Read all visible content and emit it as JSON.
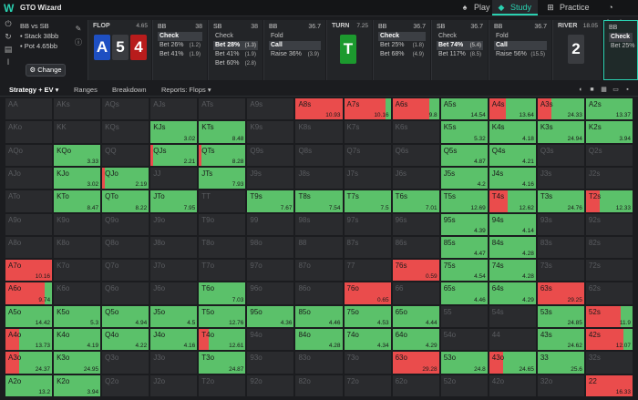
{
  "app": {
    "title": "GTO Wizard"
  },
  "nav": [
    {
      "label": "Play",
      "icon": "spade-icon",
      "glyph": "♠",
      "active": false
    },
    {
      "label": "Study",
      "icon": "study-cap-icon",
      "glyph": "◆",
      "active": true
    },
    {
      "label": "Practice",
      "icon": "gamepad-icon",
      "glyph": "⊞",
      "active": false
    },
    {
      "label": "Analyze",
      "icon": "analyze-icon",
      "glyph": "◔",
      "active": false
    }
  ],
  "spot": {
    "matchup": "BB vs SB",
    "stack": "• Stack 38bb",
    "pot": "• Pot 4.65bb",
    "change_label": "Change"
  },
  "flop": {
    "title": "FLOP",
    "pot": "4.65",
    "cards": [
      {
        "rank": "A",
        "color": "#1e4fc2"
      },
      {
        "rank": "5",
        "color": "#3a3c40"
      },
      {
        "rank": "4",
        "color": "#b81c1c"
      }
    ]
  },
  "turn": {
    "title": "TURN",
    "pot": "7.25",
    "card": {
      "rank": "T",
      "color": "#1c9a2e"
    }
  },
  "river": {
    "title": "RIVER",
    "pot": "18.05",
    "card": {
      "rank": "2",
      "color": "#3a3c40"
    }
  },
  "panels": [
    {
      "player": "BB",
      "stack": "38",
      "actions": [
        {
          "label": "Check",
          "n": "",
          "sel": true
        },
        {
          "label": "Bet 26%",
          "n": "(1.2)",
          "sel": false
        },
        {
          "label": "Bet 41%",
          "n": "(1.9)",
          "sel": false
        }
      ]
    },
    {
      "player": "SB",
      "stack": "38",
      "actions": [
        {
          "label": "Check",
          "n": "",
          "sel": false
        },
        {
          "label": "Bet 28%",
          "n": "(1.3)",
          "sel": true
        },
        {
          "label": "Bet 41%",
          "n": "(1.9)",
          "sel": false
        },
        {
          "label": "Bet 60%",
          "n": "(2.8)",
          "sel": false
        }
      ]
    },
    {
      "player": "BB",
      "stack": "36.7",
      "actions": [
        {
          "label": "Fold",
          "n": "",
          "sel": false
        },
        {
          "label": "Call",
          "n": "",
          "sel": true
        },
        {
          "label": "Raise 36%",
          "n": "(3.9)",
          "sel": false
        }
      ]
    },
    {
      "player": "BB",
      "stack": "36.7",
      "actions": [
        {
          "label": "Check",
          "n": "",
          "sel": true
        },
        {
          "label": "Bet 25%",
          "n": "(1.8)",
          "sel": false
        },
        {
          "label": "Bet 68%",
          "n": "(4.9)",
          "sel": false
        }
      ]
    },
    {
      "player": "SB",
      "stack": "36.7",
      "actions": [
        {
          "label": "Check",
          "n": "",
          "sel": false
        },
        {
          "label": "Bet 74%",
          "n": "(5.4)",
          "sel": true
        },
        {
          "label": "Bet 117%",
          "n": "(8.5)",
          "sel": false
        }
      ]
    },
    {
      "player": "BB",
      "stack": "36.7",
      "actions": [
        {
          "label": "Fold",
          "n": "",
          "sel": false
        },
        {
          "label": "Call",
          "n": "",
          "sel": true
        },
        {
          "label": "Raise 56%",
          "n": "(15.5)",
          "sel": false
        }
      ]
    },
    {
      "player": "BB",
      "stack": "",
      "actions": [
        {
          "label": "Check",
          "n": "",
          "sel": true
        },
        {
          "label": "Bet 25%",
          "n": "",
          "sel": false
        }
      ]
    }
  ],
  "tabs": {
    "strategy": "Strategy + EV",
    "ranges": "Ranges",
    "breakdown": "Breakdown",
    "reports": "Reports: Flops"
  },
  "colors": {
    "green": "#5bc16a",
    "red": "#ea4c4c",
    "empty": "#2a2b2e",
    "accent": "#2ad0b0"
  },
  "matrix": [
    [
      [
        "AA",
        0,
        0,
        ""
      ],
      [
        "AKs",
        0,
        0,
        ""
      ],
      [
        "AQs",
        0,
        0,
        ""
      ],
      [
        "AJs",
        0,
        0,
        ""
      ],
      [
        "ATs",
        0,
        0,
        ""
      ],
      [
        "A9s",
        0,
        0,
        ""
      ],
      [
        "A8s",
        1,
        1,
        "10.93"
      ],
      [
        "A7s",
        1,
        0.9,
        "10.16"
      ],
      [
        "A6s",
        1,
        0.8,
        "9.8"
      ],
      [
        "A5s",
        1,
        0,
        "14.54"
      ],
      [
        "A4s",
        1,
        0.35,
        "13.64"
      ],
      [
        "A3s",
        1,
        0.3,
        "24.33"
      ],
      [
        "A2s",
        1,
        0,
        "13.37"
      ]
    ],
    [
      [
        "AKo",
        0,
        0,
        ""
      ],
      [
        "KK",
        0,
        0,
        ""
      ],
      [
        "KQs",
        0,
        0,
        ""
      ],
      [
        "KJs",
        1,
        0,
        "3.02"
      ],
      [
        "KTs",
        1,
        0,
        "8.48"
      ],
      [
        "K9s",
        0,
        0,
        ""
      ],
      [
        "K8s",
        0,
        0,
        ""
      ],
      [
        "K7s",
        0,
        0,
        ""
      ],
      [
        "K6s",
        0,
        0,
        ""
      ],
      [
        "K5s",
        1,
        0,
        "5.32"
      ],
      [
        "K4s",
        1,
        0,
        "4.18"
      ],
      [
        "K3s",
        1,
        0,
        "24.94"
      ],
      [
        "K2s",
        1,
        0,
        "3.94"
      ]
    ],
    [
      [
        "AQo",
        0,
        0,
        ""
      ],
      [
        "KQo",
        1,
        0,
        "3.33"
      ],
      [
        "QQ",
        0,
        0,
        ""
      ],
      [
        "QJs",
        1,
        0.05,
        "2.21"
      ],
      [
        "QTs",
        1,
        0.05,
        "8.28"
      ],
      [
        "Q9s",
        0,
        0,
        ""
      ],
      [
        "Q8s",
        0,
        0,
        ""
      ],
      [
        "Q7s",
        0,
        0,
        ""
      ],
      [
        "Q6s",
        0,
        0,
        ""
      ],
      [
        "Q5s",
        1,
        0,
        "4.87"
      ],
      [
        "Q4s",
        1,
        0,
        "4.21"
      ],
      [
        "Q3s",
        0,
        0,
        ""
      ],
      [
        "Q2s",
        0,
        0,
        ""
      ]
    ],
    [
      [
        "AJo",
        0,
        0,
        ""
      ],
      [
        "KJo",
        1,
        0,
        "3.02"
      ],
      [
        "QJo",
        1,
        0.05,
        "2.19"
      ],
      [
        "JJ",
        0,
        0,
        ""
      ],
      [
        "JTs",
        1,
        0,
        "7.93"
      ],
      [
        "J9s",
        0,
        0,
        ""
      ],
      [
        "J8s",
        0,
        0,
        ""
      ],
      [
        "J7s",
        0,
        0,
        ""
      ],
      [
        "J6s",
        0,
        0,
        ""
      ],
      [
        "J5s",
        1,
        0,
        "4.2"
      ],
      [
        "J4s",
        1,
        0,
        "4.16"
      ],
      [
        "J3s",
        0,
        0,
        ""
      ],
      [
        "J2s",
        0,
        0,
        ""
      ]
    ],
    [
      [
        "ATo",
        0,
        0,
        ""
      ],
      [
        "KTo",
        1,
        0,
        "8.47"
      ],
      [
        "QTo",
        1,
        0,
        "8.22"
      ],
      [
        "JTo",
        1,
        0,
        "7.95"
      ],
      [
        "TT",
        0,
        0,
        ""
      ],
      [
        "T9s",
        1,
        0,
        "7.67"
      ],
      [
        "T8s",
        1,
        0,
        "7.54"
      ],
      [
        "T7s",
        1,
        0,
        "7.5"
      ],
      [
        "T6s",
        1,
        0,
        "7.01"
      ],
      [
        "T5s",
        1,
        0,
        "12.69"
      ],
      [
        "T4s",
        1,
        0.4,
        "12.62"
      ],
      [
        "T3s",
        1,
        0,
        "24.76"
      ],
      [
        "T2s",
        1,
        0.3,
        "12.33"
      ]
    ],
    [
      [
        "A9o",
        0,
        0,
        ""
      ],
      [
        "K9o",
        0,
        0,
        ""
      ],
      [
        "Q9o",
        0,
        0,
        ""
      ],
      [
        "J9o",
        0,
        0,
        ""
      ],
      [
        "T9o",
        0,
        0,
        ""
      ],
      [
        "99",
        0,
        0,
        ""
      ],
      [
        "98s",
        0,
        0,
        ""
      ],
      [
        "97s",
        0,
        0,
        ""
      ],
      [
        "96s",
        0,
        0,
        ""
      ],
      [
        "95s",
        1,
        0,
        "4.39"
      ],
      [
        "94s",
        1,
        0,
        "4.14"
      ],
      [
        "93s",
        0,
        0,
        ""
      ],
      [
        "92s",
        0,
        0,
        ""
      ]
    ],
    [
      [
        "A8o",
        0,
        0,
        ""
      ],
      [
        "K8o",
        0,
        0,
        ""
      ],
      [
        "Q8o",
        0,
        0,
        ""
      ],
      [
        "J8o",
        0,
        0,
        ""
      ],
      [
        "T8o",
        0,
        0,
        ""
      ],
      [
        "98o",
        0,
        0,
        ""
      ],
      [
        "88",
        0,
        0,
        ""
      ],
      [
        "87s",
        0,
        0,
        ""
      ],
      [
        "86s",
        0,
        0,
        ""
      ],
      [
        "85s",
        1,
        0,
        "4.47"
      ],
      [
        "84s",
        1,
        0,
        "4.28"
      ],
      [
        "83s",
        0,
        0,
        ""
      ],
      [
        "82s",
        0,
        0,
        ""
      ]
    ],
    [
      [
        "A7o",
        1,
        1,
        "10.16"
      ],
      [
        "K7o",
        0,
        0,
        ""
      ],
      [
        "Q7o",
        0,
        0,
        ""
      ],
      [
        "J7o",
        0,
        0,
        ""
      ],
      [
        "T7o",
        0,
        0,
        ""
      ],
      [
        "97o",
        0,
        0,
        ""
      ],
      [
        "87o",
        0,
        0,
        ""
      ],
      [
        "77",
        0,
        0,
        ""
      ],
      [
        "76s",
        1,
        1,
        "0.59"
      ],
      [
        "75s",
        1,
        0,
        "4.54"
      ],
      [
        "74s",
        1,
        0,
        "4.28"
      ],
      [
        "73s",
        0,
        0,
        ""
      ],
      [
        "72s",
        0,
        0,
        ""
      ]
    ],
    [
      [
        "A6o",
        1,
        0.85,
        "9.74"
      ],
      [
        "K6o",
        0,
        0,
        ""
      ],
      [
        "Q6o",
        0,
        0,
        ""
      ],
      [
        "J6o",
        0,
        0,
        ""
      ],
      [
        "T6o",
        1,
        0,
        "7.03"
      ],
      [
        "96o",
        0,
        0,
        ""
      ],
      [
        "86o",
        0,
        0,
        ""
      ],
      [
        "76o",
        1,
        1,
        "0.65"
      ],
      [
        "66",
        0,
        0,
        ""
      ],
      [
        "65s",
        1,
        0,
        "4.46"
      ],
      [
        "64s",
        1,
        0,
        "4.29"
      ],
      [
        "63s",
        1,
        1,
        "29.25"
      ],
      [
        "62s",
        0,
        0,
        ""
      ]
    ],
    [
      [
        "A5o",
        1,
        0,
        "14.42"
      ],
      [
        "K5o",
        1,
        0,
        "5.3"
      ],
      [
        "Q5o",
        1,
        0,
        "4.94"
      ],
      [
        "J5o",
        1,
        0,
        "4.5"
      ],
      [
        "T5o",
        1,
        0,
        "12.76"
      ],
      [
        "95o",
        1,
        0,
        "4.36"
      ],
      [
        "85o",
        1,
        0,
        "4.46"
      ],
      [
        "75o",
        1,
        0,
        "4.53"
      ],
      [
        "65o",
        1,
        0,
        "4.44"
      ],
      [
        "55",
        0,
        0,
        ""
      ],
      [
        "54s",
        0,
        0,
        ""
      ],
      [
        "53s",
        1,
        0,
        "24.85"
      ],
      [
        "52s",
        1,
        0.75,
        "11.9"
      ]
    ],
    [
      [
        "A4o",
        1,
        0.3,
        "13.73"
      ],
      [
        "K4o",
        1,
        0,
        "4.19"
      ],
      [
        "Q4o",
        1,
        0,
        "4.22"
      ],
      [
        "J4o",
        1,
        0,
        "4.16"
      ],
      [
        "T4o",
        1,
        0.2,
        "12.61"
      ],
      [
        "94o",
        0,
        0,
        ""
      ],
      [
        "84o",
        1,
        0,
        "4.28"
      ],
      [
        "74o",
        1,
        0,
        "4.34"
      ],
      [
        "64o",
        1,
        0,
        "4.29"
      ],
      [
        "54o",
        0,
        0,
        ""
      ],
      [
        "44",
        0,
        0,
        ""
      ],
      [
        "43s",
        1,
        0,
        "24.62"
      ],
      [
        "42s",
        1,
        0.8,
        "12.07"
      ]
    ],
    [
      [
        "A3o",
        1,
        0.3,
        "24.37"
      ],
      [
        "K3o",
        1,
        0,
        "24.95"
      ],
      [
        "Q3o",
        0,
        0,
        ""
      ],
      [
        "J3o",
        0,
        0,
        ""
      ],
      [
        "T3o",
        1,
        0,
        "24.87"
      ],
      [
        "93o",
        0,
        0,
        ""
      ],
      [
        "83o",
        0,
        0,
        ""
      ],
      [
        "73o",
        0,
        0,
        ""
      ],
      [
        "63o",
        1,
        1,
        "29.28"
      ],
      [
        "53o",
        1,
        0,
        "24.8"
      ],
      [
        "43o",
        1,
        0.3,
        "24.65"
      ],
      [
        "33",
        1,
        0,
        "25.6"
      ],
      [
        "32s",
        0,
        0,
        ""
      ]
    ],
    [
      [
        "A2o",
        1,
        0,
        "13.2"
      ],
      [
        "K2o",
        1,
        0,
        "3.94"
      ],
      [
        "Q2o",
        0,
        0,
        ""
      ],
      [
        "J2o",
        0,
        0,
        ""
      ],
      [
        "T2o",
        0,
        0,
        ""
      ],
      [
        "92o",
        0,
        0,
        ""
      ],
      [
        "82o",
        0,
        0,
        ""
      ],
      [
        "72o",
        0,
        0,
        ""
      ],
      [
        "62o",
        0,
        0,
        ""
      ],
      [
        "52o",
        0,
        0,
        ""
      ],
      [
        "42o",
        0,
        0,
        ""
      ],
      [
        "32o",
        0,
        0,
        ""
      ],
      [
        "22",
        1,
        1,
        "16.33"
      ]
    ]
  ]
}
